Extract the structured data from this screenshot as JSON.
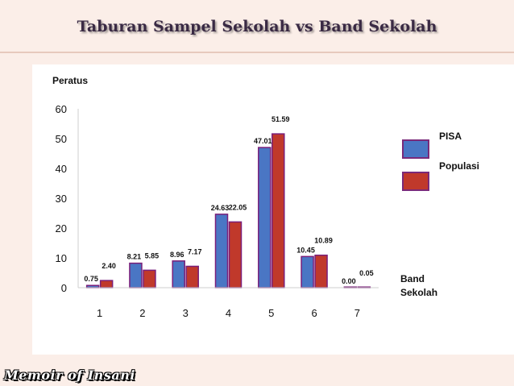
{
  "slide": {
    "title": "Taburan Sampel Sekolah vs Band Sekolah",
    "footer": "Memoir of Insani"
  },
  "colors": {
    "pisa": "#4a76c4",
    "populasi": "#c0392b",
    "bar_border": "#7a1f7a"
  },
  "chart_data": {
    "type": "bar",
    "title": "",
    "ylabel": "Peratus",
    "xlabel": "Band Sekolah",
    "categories": [
      "1",
      "2",
      "3",
      "4",
      "5",
      "6",
      "7"
    ],
    "ylim": [
      0,
      60
    ],
    "yticks": [
      0,
      10,
      20,
      30,
      40,
      50,
      60
    ],
    "grid": false,
    "legend": "right",
    "series": [
      {
        "name": "PISA",
        "values": [
          0.75,
          8.21,
          8.96,
          24.63,
          47.01,
          10.45,
          0.0
        ],
        "labels": [
          "0.75",
          "8.21",
          "8.96",
          "24.63",
          "47.01",
          "10.45",
          "0.00"
        ]
      },
      {
        "name": "Populasi",
        "values": [
          2.4,
          5.85,
          7.17,
          22.05,
          51.59,
          10.89,
          0.05
        ],
        "labels": [
          "2.40",
          "5.85",
          "7.17",
          "22.05",
          "51.59",
          "10.89",
          "0.05"
        ]
      }
    ]
  }
}
